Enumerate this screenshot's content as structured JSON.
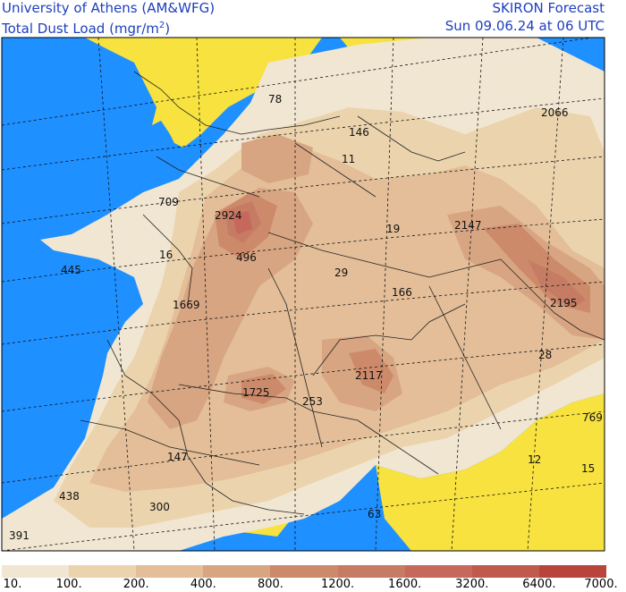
{
  "header": {
    "left_line1": "University of Athens (AM&WFG)",
    "left_line2_prefix": "Total Dust Load (mgr/m",
    "left_line2_sup": "2",
    "left_line2_suffix": ")",
    "right_line1": "SKIRON Forecast",
    "right_line2": "Sun 09.06.24 at 06 UTC"
  },
  "colors": {
    "sea": "#1e90ff",
    "no_dust_land": "#f7e23f",
    "frame": "#000000",
    "text": "#1d3fbf"
  },
  "colorbar": {
    "colors": [
      "#f1e6d2",
      "#ebd4ad",
      "#e3be98",
      "#d8a582",
      "#cd8a6a",
      "#c67c64",
      "#c6685b",
      "#c05a4c",
      "#b9443c"
    ],
    "ticks": [
      "10.",
      "100.",
      "200.",
      "400.",
      "800.",
      "1200.",
      "1600.",
      "3200.",
      "6400.",
      "7000."
    ]
  },
  "map_labels": [
    {
      "text": "78"
    },
    {
      "text": "146"
    },
    {
      "text": "2066"
    },
    {
      "text": "11"
    },
    {
      "text": "709"
    },
    {
      "text": "2924"
    },
    {
      "text": "19"
    },
    {
      "text": "2147"
    },
    {
      "text": "445"
    },
    {
      "text": "16"
    },
    {
      "text": "496"
    },
    {
      "text": "29"
    },
    {
      "text": "166"
    },
    {
      "text": "1669"
    },
    {
      "text": "2195"
    },
    {
      "text": "28"
    },
    {
      "text": "1725"
    },
    {
      "text": "253"
    },
    {
      "text": "2117"
    },
    {
      "text": "769"
    },
    {
      "text": "147"
    },
    {
      "text": "12"
    },
    {
      "text": "15"
    },
    {
      "text": "438"
    },
    {
      "text": "300"
    },
    {
      "text": "63"
    },
    {
      "text": "391"
    }
  ]
}
